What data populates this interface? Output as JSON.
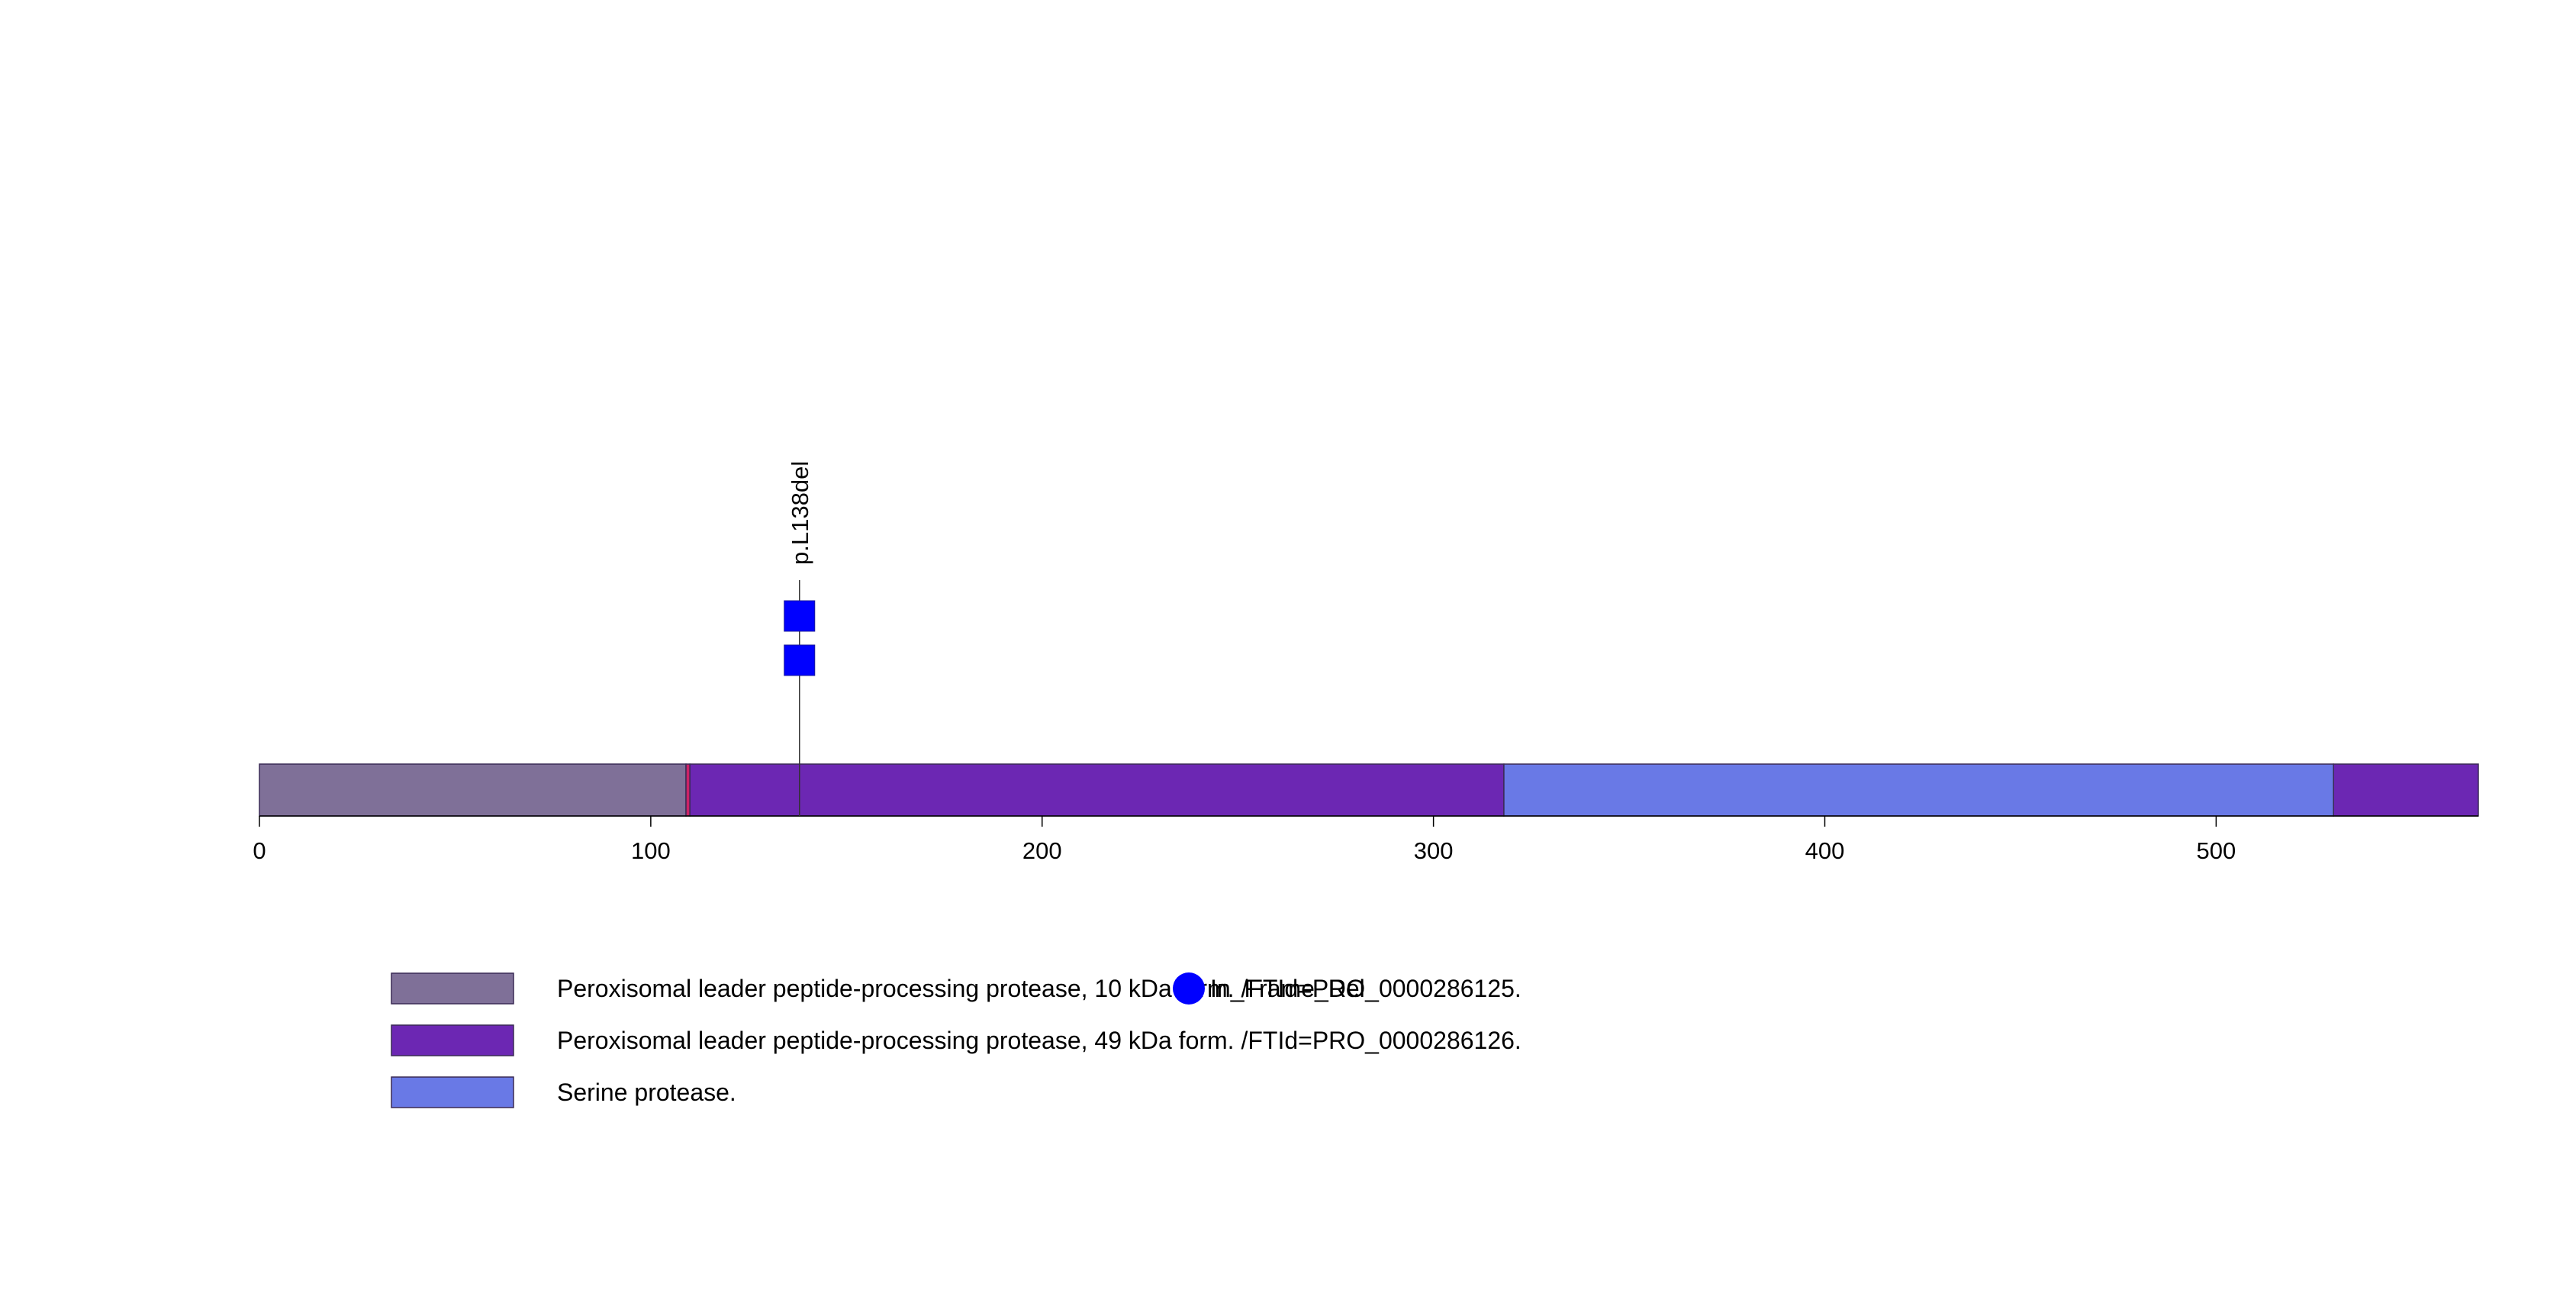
{
  "protein": {
    "length": 567,
    "axis_ticks": [
      0,
      100,
      200,
      300,
      400,
      500
    ],
    "regions": [
      {
        "start": 0,
        "end": 109,
        "color": "#7F7098",
        "legend_index": 0
      },
      {
        "start": 109,
        "end": 110,
        "color": "#CC2266",
        "legend_index": null
      },
      {
        "start": 110,
        "end": 318,
        "color": "#6C27B3",
        "legend_index": 1
      },
      {
        "start": 318,
        "end": 530,
        "color": "#6979E6",
        "legend_index": 2
      },
      {
        "start": 530,
        "end": 567,
        "color": "#6C27B3",
        "legend_index": 1
      }
    ]
  },
  "mutations": [
    {
      "position": 138,
      "label": "p.L138del",
      "count": 2,
      "marker_color": "#0000FF"
    }
  ],
  "legend": {
    "items": [
      {
        "label": "Peroxisomal leader peptide-processing protease, 10 kDa form. /FTId=PRO_0000286125.",
        "color": "#7F7098"
      },
      {
        "label": "Peroxisomal leader peptide-processing protease, 49 kDa form. /FTId=PRO_0000286126.",
        "color": "#6C27B3"
      },
      {
        "label": "Serine protease.",
        "color": "#6979E6"
      }
    ],
    "overlay_marker": {
      "label": "In_Frame_Del",
      "color": "#0000FF"
    }
  }
}
